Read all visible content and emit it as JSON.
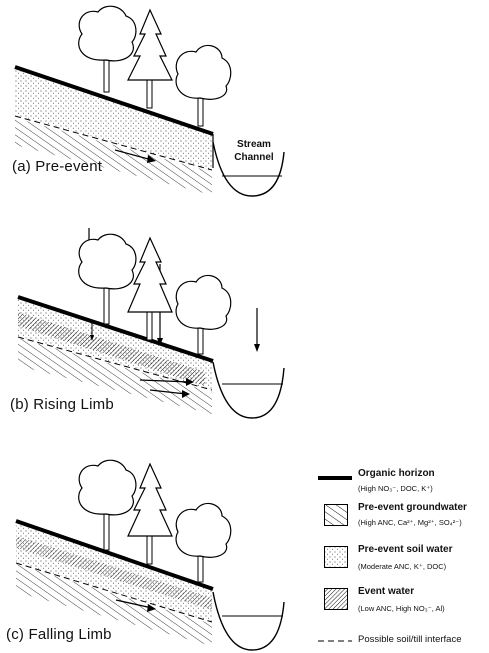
{
  "panels": {
    "a": {
      "label": "(a) Pre-event"
    },
    "b": {
      "label": "(b) Rising Limb"
    },
    "c": {
      "label": "(c) Falling Limb"
    }
  },
  "stream_label_line1": "Stream",
  "stream_label_line2": "Channel",
  "legend": {
    "organic": {
      "title": "Organic horizon",
      "sub": "(High NO₃⁻, DOC, K⁺)"
    },
    "groundwater": {
      "title": "Pre-event groundwater",
      "sub": "(High ANC, Ca²⁺, Mg²⁺, SO₄²⁻)"
    },
    "soilwater": {
      "title": "Pre-event soil water",
      "sub": "(Moderate ANC, K⁺, DOC)"
    },
    "eventwater": {
      "title": "Event water",
      "sub": "(Low ANC, High NO₃⁻, Al)"
    },
    "interface": {
      "title": "Possible soil/till interface"
    }
  }
}
